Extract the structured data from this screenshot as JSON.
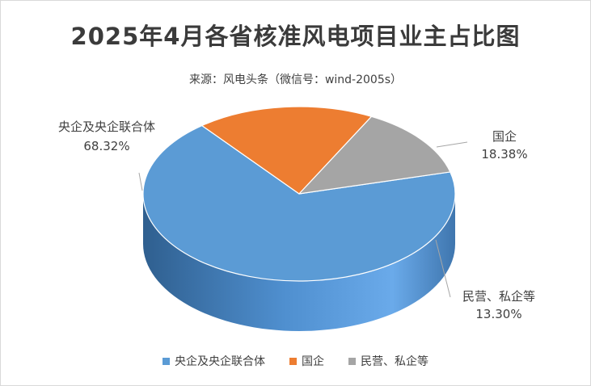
{
  "title": "2025年4月各省核准风电项目业主占比图",
  "subtitle": "来源：风电头条（微信号：wind-2005s）",
  "chart_data": {
    "type": "pie",
    "style": "3d",
    "legend_position": "bottom",
    "slices": [
      {
        "name": "央企及央企联合体",
        "value": 68.32,
        "label": "68.32%",
        "color": "#5b9bd5"
      },
      {
        "name": "国企",
        "value": 18.38,
        "label": "18.38%",
        "color": "#ed7d31"
      },
      {
        "name": "民营、私企等",
        "value": 13.3,
        "label": "13.30%",
        "color": "#a5a5a5"
      }
    ]
  }
}
